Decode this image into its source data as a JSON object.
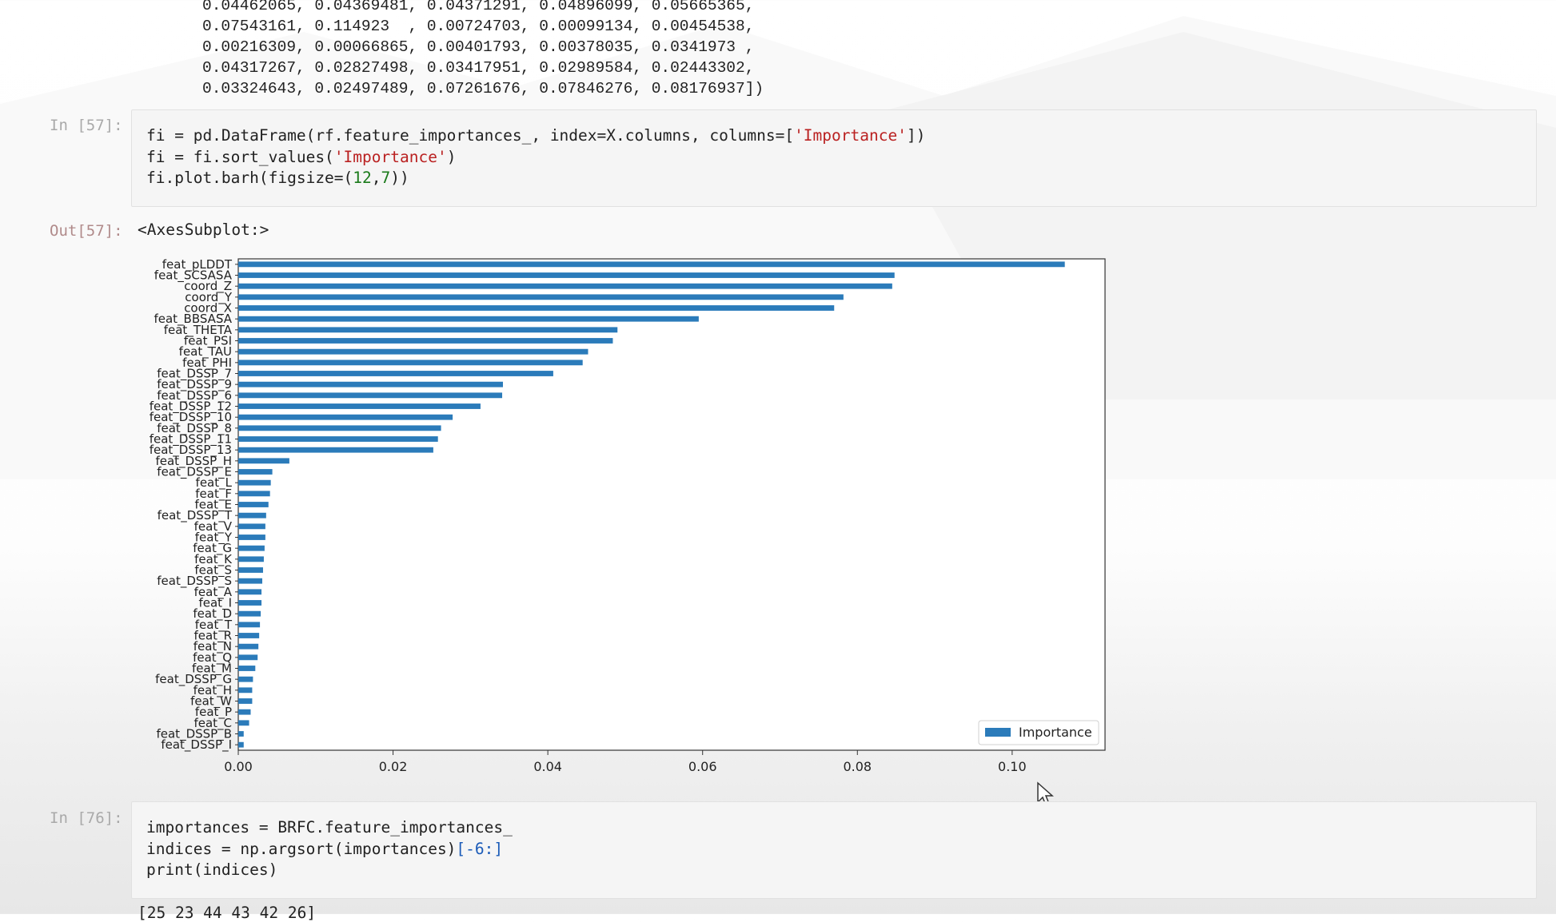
{
  "prev_output": {
    "lines": [
      "0.04462065, 0.04369481, 0.04371291, 0.04896099, 0.05665365,",
      "0.07543161, 0.114923  , 0.00724703, 0.00099134, 0.00454538,",
      "0.00216309, 0.00066865, 0.00401793, 0.00378035, 0.0341973 ,",
      "0.04317267, 0.02827498, 0.03417951, 0.02989584, 0.02443302,",
      "0.03324643, 0.02497489, 0.07261676, 0.07846276, 0.08176937])"
    ]
  },
  "cell57": {
    "in_prompt": "In [57]:",
    "lines": [
      "fi = pd.DataFrame(rf.feature_importances_, index=X.columns, columns=['Importance'])",
      "fi = fi.sort_values('Importance')",
      "fi.plot.barh(figsize=(12,7))"
    ],
    "out_prompt": "Out[57]:",
    "out_text": "<AxesSubplot:>"
  },
  "cell76": {
    "in_prompt": "In [76]:",
    "lines": [
      "importances = BRFC.feature_importances_",
      "indices = np.argsort(importances)[-6:]",
      "print(indices)"
    ],
    "output": "[25 23 44 43 42 26]"
  },
  "colors": {
    "bar": "#2b7bba",
    "prompt_in": "#a9a9a9",
    "prompt_out": "#b08a8a"
  },
  "chart_data": {
    "type": "bar",
    "orientation": "horizontal",
    "categories": [
      "feat_pLDDT",
      "feat_SCSASA",
      "coord_Z",
      "coord_Y",
      "coord_X",
      "feat_BBSASA",
      "feat_THETA",
      "feat_PSI",
      "feat_TAU",
      "feat_PHI",
      "feat_DSSP_7",
      "feat_DSSP_9",
      "feat_DSSP_6",
      "feat_DSSP_12",
      "feat_DSSP_10",
      "feat_DSSP_8",
      "feat_DSSP_11",
      "feat_DSSP_13",
      "feat_DSSP_H",
      "feat_DSSP_E",
      "feat_L",
      "feat_F",
      "feat_E",
      "feat_DSSP_T",
      "feat_V",
      "feat_Y",
      "feat_G",
      "feat_K",
      "feat_S",
      "feat_DSSP_S",
      "feat_A",
      "feat_I",
      "feat_D",
      "feat_T",
      "feat_R",
      "feat_N",
      "feat_Q",
      "feat_M",
      "feat_DSSP_G",
      "feat_H",
      "feat_W",
      "feat_P",
      "feat_C",
      "feat_DSSP_B",
      "feat_DSSP_I"
    ],
    "series": [
      {
        "name": "Importance",
        "values": [
          0.1068,
          0.0848,
          0.0845,
          0.0782,
          0.077,
          0.0595,
          0.049,
          0.0484,
          0.0452,
          0.0445,
          0.0407,
          0.0342,
          0.0341,
          0.0313,
          0.0277,
          0.0262,
          0.0258,
          0.0252,
          0.0066,
          0.0044,
          0.0042,
          0.0041,
          0.0039,
          0.0036,
          0.0035,
          0.0035,
          0.0034,
          0.0033,
          0.0032,
          0.0031,
          0.003,
          0.003,
          0.0029,
          0.0028,
          0.0027,
          0.0026,
          0.0025,
          0.0022,
          0.0019,
          0.0018,
          0.0018,
          0.0016,
          0.0014,
          0.0007,
          0.0007
        ]
      }
    ],
    "xticks": [
      "0.00",
      "0.02",
      "0.04",
      "0.06",
      "0.08",
      "0.10"
    ],
    "xlim": [
      0,
      0.112
    ],
    "legend": "lower-right",
    "grid": false
  }
}
